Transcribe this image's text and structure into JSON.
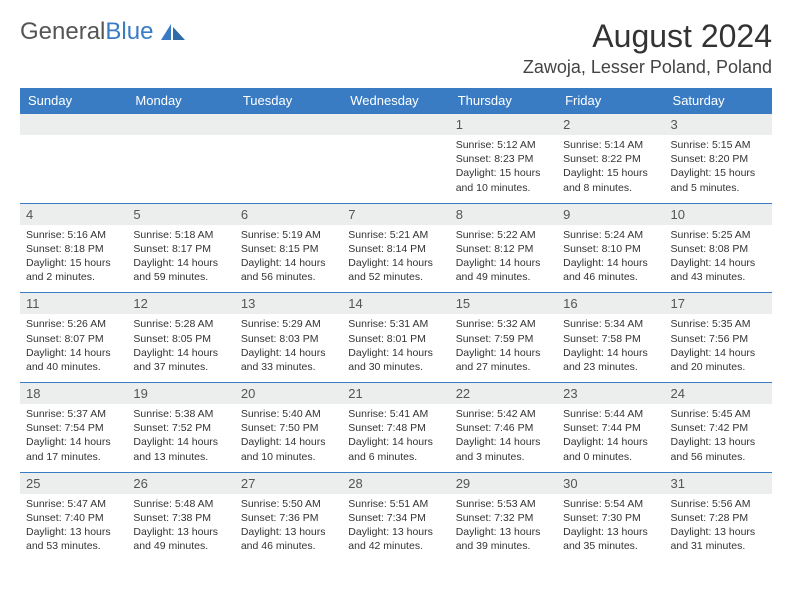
{
  "logo": {
    "text1": "General",
    "text2": "Blue"
  },
  "title": "August 2024",
  "location": "Zawoja, Lesser Poland, Poland",
  "colors": {
    "header_bg": "#3a7cc4",
    "header_text": "#ffffff",
    "daynum_bg": "#eceded",
    "border": "#3a7cc4",
    "body_text": "#333333",
    "page_bg": "#ffffff"
  },
  "day_names": [
    "Sunday",
    "Monday",
    "Tuesday",
    "Wednesday",
    "Thursday",
    "Friday",
    "Saturday"
  ],
  "weeks": [
    [
      null,
      null,
      null,
      null,
      {
        "n": "1",
        "sr": "5:12 AM",
        "ss": "8:23 PM",
        "dl": "15 hours and 10 minutes."
      },
      {
        "n": "2",
        "sr": "5:14 AM",
        "ss": "8:22 PM",
        "dl": "15 hours and 8 minutes."
      },
      {
        "n": "3",
        "sr": "5:15 AM",
        "ss": "8:20 PM",
        "dl": "15 hours and 5 minutes."
      }
    ],
    [
      {
        "n": "4",
        "sr": "5:16 AM",
        "ss": "8:18 PM",
        "dl": "15 hours and 2 minutes."
      },
      {
        "n": "5",
        "sr": "5:18 AM",
        "ss": "8:17 PM",
        "dl": "14 hours and 59 minutes."
      },
      {
        "n": "6",
        "sr": "5:19 AM",
        "ss": "8:15 PM",
        "dl": "14 hours and 56 minutes."
      },
      {
        "n": "7",
        "sr": "5:21 AM",
        "ss": "8:14 PM",
        "dl": "14 hours and 52 minutes."
      },
      {
        "n": "8",
        "sr": "5:22 AM",
        "ss": "8:12 PM",
        "dl": "14 hours and 49 minutes."
      },
      {
        "n": "9",
        "sr": "5:24 AM",
        "ss": "8:10 PM",
        "dl": "14 hours and 46 minutes."
      },
      {
        "n": "10",
        "sr": "5:25 AM",
        "ss": "8:08 PM",
        "dl": "14 hours and 43 minutes."
      }
    ],
    [
      {
        "n": "11",
        "sr": "5:26 AM",
        "ss": "8:07 PM",
        "dl": "14 hours and 40 minutes."
      },
      {
        "n": "12",
        "sr": "5:28 AM",
        "ss": "8:05 PM",
        "dl": "14 hours and 37 minutes."
      },
      {
        "n": "13",
        "sr": "5:29 AM",
        "ss": "8:03 PM",
        "dl": "14 hours and 33 minutes."
      },
      {
        "n": "14",
        "sr": "5:31 AM",
        "ss": "8:01 PM",
        "dl": "14 hours and 30 minutes."
      },
      {
        "n": "15",
        "sr": "5:32 AM",
        "ss": "7:59 PM",
        "dl": "14 hours and 27 minutes."
      },
      {
        "n": "16",
        "sr": "5:34 AM",
        "ss": "7:58 PM",
        "dl": "14 hours and 23 minutes."
      },
      {
        "n": "17",
        "sr": "5:35 AM",
        "ss": "7:56 PM",
        "dl": "14 hours and 20 minutes."
      }
    ],
    [
      {
        "n": "18",
        "sr": "5:37 AM",
        "ss": "7:54 PM",
        "dl": "14 hours and 17 minutes."
      },
      {
        "n": "19",
        "sr": "5:38 AM",
        "ss": "7:52 PM",
        "dl": "14 hours and 13 minutes."
      },
      {
        "n": "20",
        "sr": "5:40 AM",
        "ss": "7:50 PM",
        "dl": "14 hours and 10 minutes."
      },
      {
        "n": "21",
        "sr": "5:41 AM",
        "ss": "7:48 PM",
        "dl": "14 hours and 6 minutes."
      },
      {
        "n": "22",
        "sr": "5:42 AM",
        "ss": "7:46 PM",
        "dl": "14 hours and 3 minutes."
      },
      {
        "n": "23",
        "sr": "5:44 AM",
        "ss": "7:44 PM",
        "dl": "14 hours and 0 minutes."
      },
      {
        "n": "24",
        "sr": "5:45 AM",
        "ss": "7:42 PM",
        "dl": "13 hours and 56 minutes."
      }
    ],
    [
      {
        "n": "25",
        "sr": "5:47 AM",
        "ss": "7:40 PM",
        "dl": "13 hours and 53 minutes."
      },
      {
        "n": "26",
        "sr": "5:48 AM",
        "ss": "7:38 PM",
        "dl": "13 hours and 49 minutes."
      },
      {
        "n": "27",
        "sr": "5:50 AM",
        "ss": "7:36 PM",
        "dl": "13 hours and 46 minutes."
      },
      {
        "n": "28",
        "sr": "5:51 AM",
        "ss": "7:34 PM",
        "dl": "13 hours and 42 minutes."
      },
      {
        "n": "29",
        "sr": "5:53 AM",
        "ss": "7:32 PM",
        "dl": "13 hours and 39 minutes."
      },
      {
        "n": "30",
        "sr": "5:54 AM",
        "ss": "7:30 PM",
        "dl": "13 hours and 35 minutes."
      },
      {
        "n": "31",
        "sr": "5:56 AM",
        "ss": "7:28 PM",
        "dl": "13 hours and 31 minutes."
      }
    ]
  ],
  "labels": {
    "sunrise": "Sunrise: ",
    "sunset": "Sunset: ",
    "daylight": "Daylight: "
  }
}
